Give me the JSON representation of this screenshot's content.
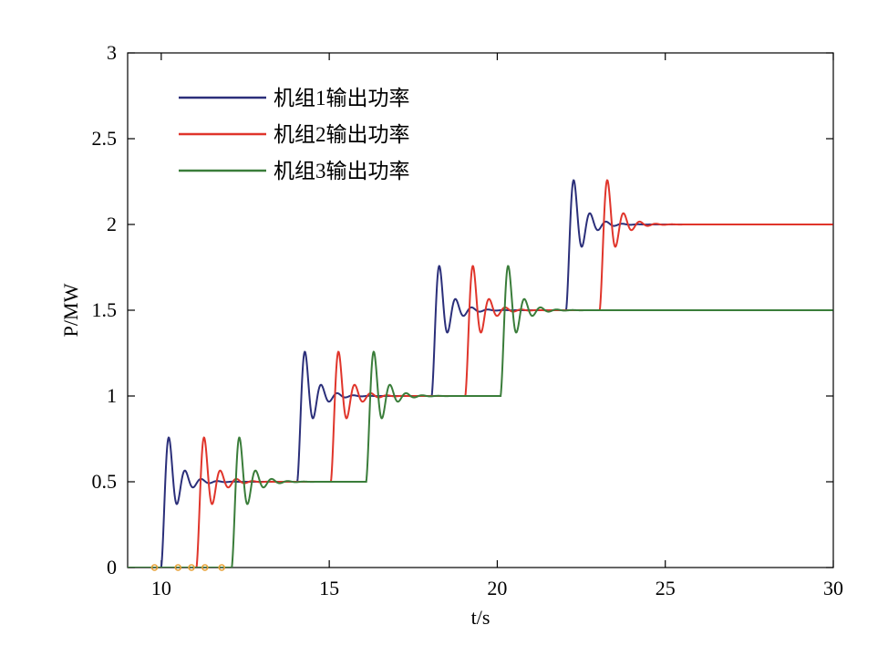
{
  "chart_data": {
    "type": "line",
    "title": "",
    "xlabel": "t/s",
    "ylabel": "P/MW",
    "xlim": [
      9,
      30
    ],
    "ylim": [
      0,
      3
    ],
    "grid": false,
    "legend_position": "top-left",
    "x_ticks": [
      10,
      15,
      20,
      25,
      30
    ],
    "y_ticks": [
      0,
      0.5,
      1,
      1.5,
      2,
      2.5,
      3
    ],
    "x_tick_labels": [
      "10",
      "15",
      "20",
      "25",
      "30"
    ],
    "y_tick_labels": [
      "0",
      "0.5",
      "1",
      "1.5",
      "2",
      "2.5",
      "3"
    ],
    "series": [
      {
        "name": "机组1输出功率",
        "color": "#2b2f7a",
        "steps": [
          {
            "t": 10.0,
            "from": 0,
            "to": 0.5
          },
          {
            "t": 14.05,
            "from": 0.5,
            "to": 1.0
          },
          {
            "t": 18.05,
            "from": 1.0,
            "to": 1.5
          },
          {
            "t": 22.05,
            "from": 1.5,
            "to": 2.0
          }
        ],
        "final_value": 2.0,
        "peaks": [
          {
            "x": 10.25,
            "y": 0.75
          },
          {
            "x": 14.25,
            "y": 1.25
          },
          {
            "x": 18.25,
            "y": 1.75
          },
          {
            "x": 22.25,
            "y": 2.25
          }
        ]
      },
      {
        "name": "机组2输出功率",
        "color": "#e0352b",
        "steps": [
          {
            "t": 11.05,
            "from": 0,
            "to": 0.5
          },
          {
            "t": 15.05,
            "from": 0.5,
            "to": 1.0
          },
          {
            "t": 19.05,
            "from": 1.0,
            "to": 1.5
          },
          {
            "t": 23.05,
            "from": 1.5,
            "to": 2.0
          }
        ],
        "final_value": 2.0,
        "peaks": [
          {
            "x": 11.25,
            "y": 0.75
          },
          {
            "x": 15.25,
            "y": 1.25
          },
          {
            "x": 19.25,
            "y": 1.75
          },
          {
            "x": 23.25,
            "y": 2.25
          }
        ]
      },
      {
        "name": "机组3输出功率",
        "color": "#3a7d3a",
        "steps": [
          {
            "t": 12.1,
            "from": 0,
            "to": 0.5
          },
          {
            "t": 16.1,
            "from": 0.5,
            "to": 1.0
          },
          {
            "t": 20.1,
            "from": 1.0,
            "to": 1.5
          }
        ],
        "final_value": 1.5,
        "peaks": [
          {
            "x": 12.25,
            "y": 0.75
          },
          {
            "x": 16.25,
            "y": 1.25
          },
          {
            "x": 20.25,
            "y": 1.75
          }
        ]
      }
    ],
    "zero_markers": {
      "color": "#e8a33a",
      "x": [
        9.8,
        10.5,
        10.9,
        11.3,
        11.8
      ]
    }
  }
}
